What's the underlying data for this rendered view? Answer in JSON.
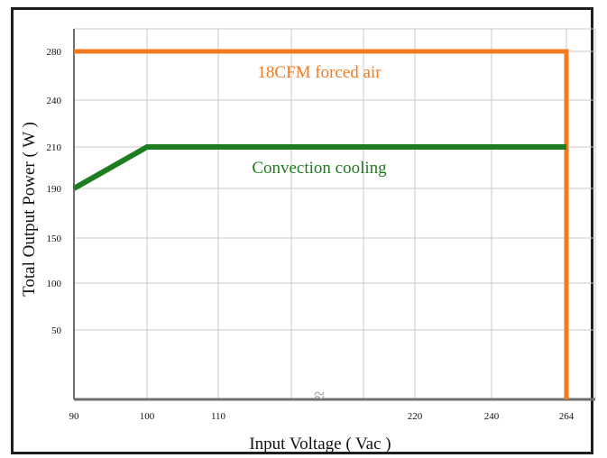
{
  "chart_data": {
    "type": "line",
    "xlabel": "Input Voltage ( Vac )",
    "ylabel": "Total Output Power ( W )",
    "x_ticks": [
      "90",
      "100",
      "110",
      "220",
      "240",
      "264"
    ],
    "y_ticks": [
      "50",
      "100",
      "150",
      "190",
      "210",
      "240",
      "280"
    ],
    "axis_break": "≈",
    "grid": true,
    "series": [
      {
        "name": "18CFM forced air",
        "color": "#f47a1f",
        "x": [
          "90",
          "264",
          "264"
        ],
        "y": [
          280,
          280,
          0
        ]
      },
      {
        "name": "Convection cooling",
        "color": "#1e7d1e",
        "x": [
          "90",
          "100",
          "264"
        ],
        "y": [
          190,
          210,
          210
        ]
      }
    ]
  }
}
